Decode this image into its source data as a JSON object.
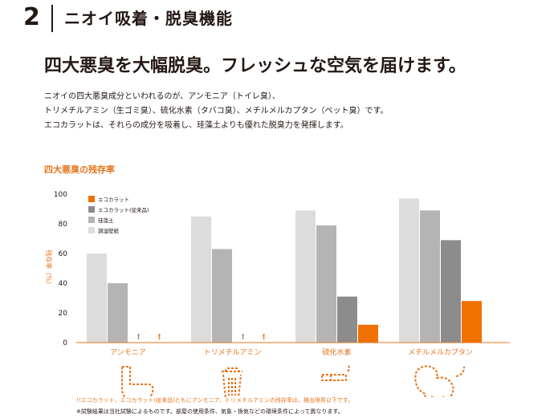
{
  "section": {
    "number": "2",
    "title": "ニオイ吸着・脱臭機能"
  },
  "headline": "四大悪臭を大幅脱臭。フレッシュな空気を届けます。",
  "body_lines": [
    "ニオイの四大悪臭成分といわれるのが、アンモニア（トイレ臭）、",
    "トリメチルアミン（生ゴミ臭）、硫化水素（タバコ臭）、メチルメルカプタン（ペット臭）です。",
    "エコカラットは、それらの成分を吸着し、珪藻土よりも優れた脱臭力を発揮します。"
  ],
  "notes": [
    "!!エコカラット、エコカラット(従来品)ともにアンモニア、トリメチルアミンの残存率は、検出限界以下です。",
    "※試験結果は当社試験によるものです。部屋の使用条件、気象・換気などの環境条件によって異なります。"
  ],
  "chart_data": {
    "type": "bar",
    "title": "四大悪臭の残存率",
    "ylabel": "残存率（%）",
    "ylim": [
      0,
      100
    ],
    "yticks": [
      "0",
      "20",
      "40",
      "60",
      "80",
      "100"
    ],
    "categories": [
      "アンモニア",
      "トリメチルアミン",
      "硫化水素",
      "メチルメルカプタン"
    ],
    "series": [
      {
        "name": "調湿壁紙",
        "color": "#dcdcdc",
        "values": [
          60,
          85,
          89,
          97
        ]
      },
      {
        "name": "珪藻土",
        "color": "#b4b4b4",
        "values": [
          40,
          63,
          79,
          89
        ]
      },
      {
        "name": "エコカラット(従来品)",
        "color": "#8c8c8c",
        "values": [
          0,
          0,
          31,
          69
        ]
      },
      {
        "name": "エコカラット",
        "color": "#f07000",
        "values": [
          0,
          0,
          12,
          28
        ]
      }
    ],
    "legend_order": [
      "エコカラット",
      "エコカラット(従来品)",
      "珪藻土",
      "調湿壁紙"
    ],
    "legend_position": "top-left",
    "below_detection_marker": "!",
    "category_icons": [
      "toilet-icon",
      "trash-can-icon",
      "cigarette-icon",
      "dog-icon"
    ],
    "accent_color": "#e8731a"
  }
}
